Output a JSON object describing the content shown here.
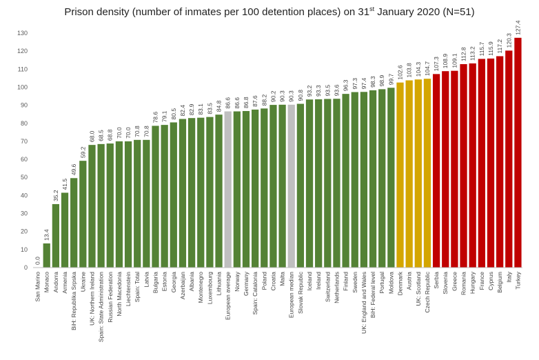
{
  "chart_data": {
    "type": "bar",
    "title": {
      "prefix": "Prison density (number of inmates per 100 detention places) on 31",
      "sup": "st",
      "suffix": " January 2020 (N=51)"
    },
    "xlabel": "",
    "ylabel": "",
    "ylim": [
      0,
      130
    ],
    "yticks": [
      0,
      10,
      20,
      30,
      40,
      50,
      60,
      70,
      80,
      90,
      100,
      110,
      120,
      130
    ],
    "grid": false,
    "legend": "none",
    "colors": {
      "green": "#548235",
      "grey": "#bfbfbf",
      "yellow": "#d4a600",
      "red": "#c00000"
    },
    "categories": [
      "San Marino",
      "Monaco",
      "Andorra",
      "Armenia",
      "BiH: Republika Srpska",
      "Ukraine",
      "UK: Northern Ireland",
      "Spain: State Administration",
      "Russian Federation",
      "North Macedonia",
      "Liechtenstein",
      "Spain: Total",
      "Latvia",
      "Bulgaria",
      "Estonia",
      "Georgia",
      "Azerbaijan",
      "Albania",
      "Montenegro",
      "Luxembourg",
      "Lithuania",
      "European average",
      "Norway",
      "Germany",
      "Spain: Catalonia",
      "Poland",
      "Croatia",
      "Malta",
      "European median",
      "Slovak Republic",
      "Iceland",
      "Ireland",
      "Switzerland",
      "Netherlands",
      "Finland",
      "Sweden",
      "UK: England and Wales",
      "BiH: Federal level",
      "Portugal",
      "Moldova",
      "Denmark",
      "Austria",
      "UK: Scotland",
      "Czech Republic",
      "Serbia",
      "Slovenia",
      "Greece",
      "Romania",
      "Hungary",
      "France",
      "Cyprus",
      "Belgium",
      "Italy",
      "Turkey"
    ],
    "values": [
      0.0,
      13.4,
      35.2,
      41.5,
      49.6,
      59.2,
      68.0,
      68.5,
      68.8,
      70.0,
      70.0,
      70.8,
      70.8,
      78.6,
      79.1,
      80.5,
      82.4,
      82.9,
      83.1,
      83.5,
      84.8,
      86.6,
      86.6,
      86.8,
      87.6,
      88.2,
      90.2,
      90.3,
      90.3,
      90.8,
      93.2,
      93.3,
      93.5,
      93.6,
      96.3,
      97.3,
      97.4,
      98.3,
      98.9,
      99.7,
      102.6,
      103.8,
      104.3,
      104.7,
      107.3,
      108.9,
      109.1,
      112.8,
      113.2,
      115.7,
      115.9,
      117.2,
      120.3,
      127.4
    ],
    "value_labels": [
      "0.0",
      "13.4",
      "35.2",
      "41.5",
      "49.6",
      "59.2",
      "68.0",
      "68.5",
      "68.8",
      "70.0",
      "70.0",
      "70.8",
      "70.8",
      "78.6",
      "79.1",
      "80.5",
      "82.4",
      "82.9",
      "83.1",
      "83.5",
      "84.8",
      "86.6",
      "86.6",
      "86.8",
      "87.6",
      "88.2",
      "90.2",
      "90.3",
      "90.3",
      "90.8",
      "93.2",
      "93.3",
      "93.5",
      "93.6",
      "96.3",
      "97.3",
      "97.4",
      "98.3",
      "98.9",
      "99.7",
      "102.6",
      "103.8",
      "104.3",
      "104.7",
      "107.3",
      "108.9",
      "109.1",
      "112.8",
      "113.2",
      "115.7",
      "115.9",
      "117.2",
      "120.3",
      "127.4"
    ],
    "bar_colors": [
      "green",
      "green",
      "green",
      "green",
      "green",
      "green",
      "green",
      "green",
      "green",
      "green",
      "green",
      "green",
      "green",
      "green",
      "green",
      "green",
      "green",
      "green",
      "green",
      "green",
      "green",
      "grey",
      "green",
      "green",
      "green",
      "green",
      "green",
      "green",
      "grey",
      "green",
      "green",
      "green",
      "green",
      "green",
      "green",
      "green",
      "green",
      "green",
      "green",
      "green",
      "yellow",
      "yellow",
      "yellow",
      "yellow",
      "red",
      "red",
      "red",
      "red",
      "red",
      "red",
      "red",
      "red",
      "red",
      "red"
    ]
  }
}
